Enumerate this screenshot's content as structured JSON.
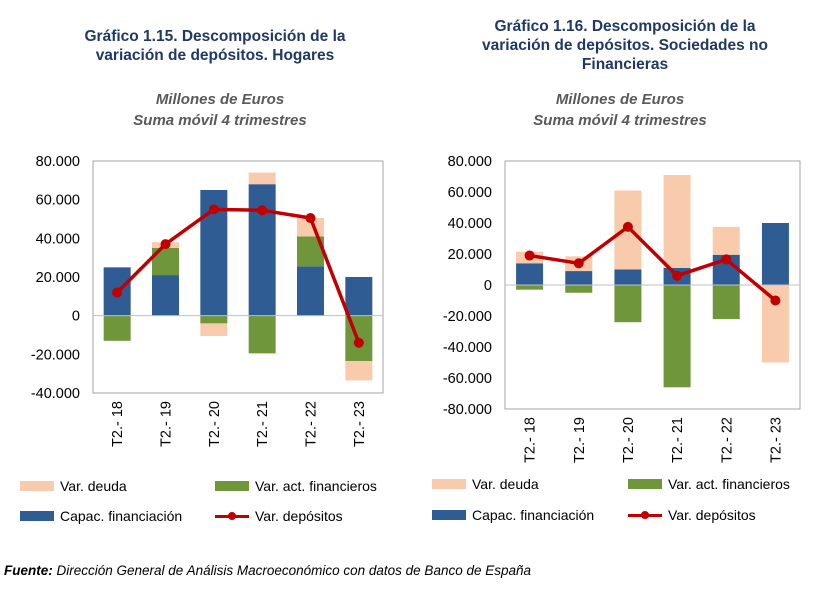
{
  "source": {
    "label": "Fuente:",
    "text": " Dirección General de Análisis Macroeconómico con datos de Banco de España"
  },
  "legend": {
    "deuda": "Var. deuda",
    "act": "Var. act. financieros",
    "capac": "Capac. financiación",
    "depositos": "Var. depósitos"
  },
  "colors": {
    "deuda": "#f8cbad",
    "act": "#70963c",
    "capac": "#305c94",
    "depositos": "#c00000",
    "plot_border": "#a6a6a6",
    "title": "#1f3864"
  },
  "chart_data": [
    {
      "type": "bar",
      "title": "Gráfico 1.15. Descomposición de la variación de depósitos. Hogares",
      "title_lines": [
        "Gráfico 1.15. Descomposición de la",
        "variación de depósitos. Hogares"
      ],
      "subtitle_lines": [
        "Millones de Euros",
        "Suma móvil 4 trimestres"
      ],
      "categories": [
        "T2.- 18",
        "T2.- 19",
        "T2.- 20",
        "T2.- 21",
        "T2.- 22",
        "T2.- 23"
      ],
      "ylim": [
        -40000,
        80000
      ],
      "yticks": [
        80000,
        60000,
        40000,
        20000,
        0,
        -20000,
        -40000
      ],
      "ytick_labels": [
        "80.000",
        "60.000",
        "40.000",
        "20.000",
        "0",
        "-20.000",
        "-40.000"
      ],
      "series": [
        {
          "name": "Capac. financiación",
          "kind": "bar",
          "values": [
            25000,
            21000,
            65000,
            68000,
            25500,
            20000
          ]
        },
        {
          "name": "Var. act. financieros",
          "kind": "bar",
          "values": [
            -13000,
            14000,
            -4000,
            -19500,
            15500,
            -23500
          ]
        },
        {
          "name": "Var. deuda",
          "kind": "bar",
          "values": [
            0,
            3000,
            -6500,
            6000,
            9500,
            -10000
          ]
        },
        {
          "name": "Var. depósitos",
          "kind": "line",
          "values": [
            12000,
            37000,
            55000,
            54500,
            50500,
            -14000
          ]
        }
      ]
    },
    {
      "type": "bar",
      "title": "Gráfico 1.16. Descomposición de la variación de depósitos. Sociedades no Financieras",
      "title_lines": [
        "Gráfico 1.16. Descomposición de la",
        "variación de depósitos. Sociedades no",
        "Financieras"
      ],
      "subtitle_lines": [
        "Millones de Euros",
        "Suma móvil 4 trimestres"
      ],
      "categories": [
        "T2.- 18",
        "T2.- 19",
        "T2.- 20",
        "T2.- 21",
        "T2.- 22",
        "T2.- 23"
      ],
      "ylim": [
        -80000,
        80000
      ],
      "yticks": [
        80000,
        60000,
        40000,
        20000,
        0,
        -20000,
        -40000,
        -60000,
        -80000
      ],
      "ytick_labels": [
        "80.000",
        "60.000",
        "40.000",
        "20.000",
        "0",
        "-20.000",
        "-40.000",
        "-60.000",
        "-80.000"
      ],
      "series": [
        {
          "name": "Capac. financiación",
          "kind": "bar",
          "values": [
            14000,
            9000,
            10000,
            11000,
            19500,
            40000
          ]
        },
        {
          "name": "Var. act. financieros",
          "kind": "bar",
          "values": [
            -3000,
            -5000,
            -24000,
            -66000,
            -22000,
            0
          ]
        },
        {
          "name": "Var. deuda",
          "kind": "bar",
          "values": [
            7500,
            9500,
            51000,
            60000,
            18000,
            -50000
          ]
        },
        {
          "name": "Var. depósitos",
          "kind": "line",
          "values": [
            19000,
            14000,
            37500,
            6000,
            16500,
            -10000
          ]
        }
      ]
    }
  ]
}
